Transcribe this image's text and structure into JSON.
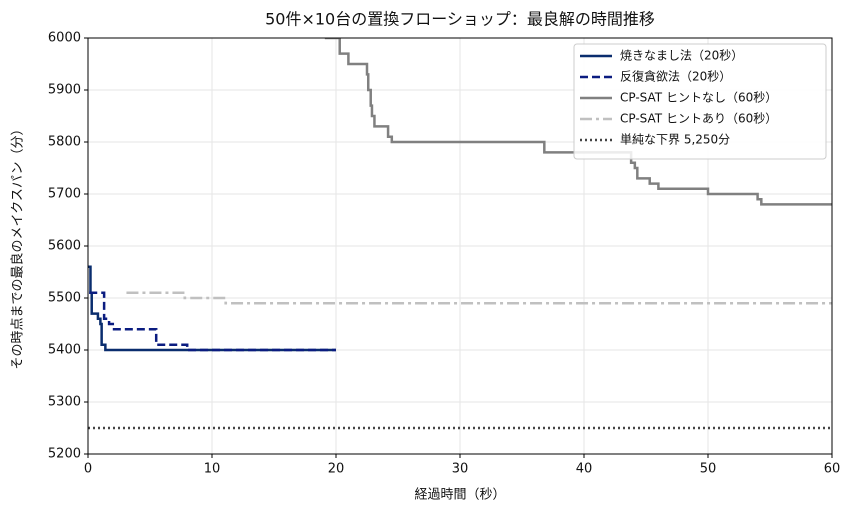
{
  "chart_data": {
    "type": "line",
    "drawstyle": "steps-post",
    "title": "50件×10台の置換フローショップ：最良解の時間推移",
    "xlabel": "経過時間（秒）",
    "ylabel": "その時点までの最良のメイクスパン（分）",
    "xlim": [
      0,
      60
    ],
    "ylim": [
      5200,
      6000
    ],
    "xticks": [
      0,
      10,
      20,
      30,
      40,
      50,
      60
    ],
    "yticks": [
      5200,
      5300,
      5400,
      5500,
      5600,
      5700,
      5800,
      5900,
      6000
    ],
    "grid": true,
    "legend": "upper right",
    "series": [
      {
        "name": "焼きなまし法（20秒）",
        "color": "#0a2d6e",
        "linestyle": "solid",
        "x": [
          0,
          0.2,
          0.3,
          0.8,
          1.0,
          1.1,
          1.4,
          20
        ],
        "values": [
          5560,
          5510,
          5470,
          5460,
          5450,
          5410,
          5400,
          5400
        ]
      },
      {
        "name": "反復貪欲法（20秒）",
        "color": "#0b1c80",
        "linestyle": "dashed",
        "x": [
          0.1,
          1.3,
          1.7,
          2.1,
          5.5,
          8.0,
          20
        ],
        "values": [
          5510,
          5460,
          5450,
          5440,
          5410,
          5400,
          5400
        ]
      },
      {
        "name": "CP-SAT ヒントなし（60秒）",
        "color": "#808080",
        "linestyle": "solid",
        "x": [
          19.1,
          20.3,
          21.0,
          22.5,
          22.6,
          22.8,
          22.9,
          23.1,
          24.2,
          24.5,
          36.8,
          43.8,
          44.1,
          44.3,
          45.3,
          46.0,
          50.0,
          54.0,
          54.3,
          60
        ],
        "values": [
          6000,
          5970,
          5950,
          5930,
          5900,
          5870,
          5850,
          5830,
          5810,
          5800,
          5780,
          5760,
          5750,
          5730,
          5720,
          5710,
          5700,
          5690,
          5680,
          5680
        ]
      },
      {
        "name": "CP-SAT ヒントあり（60秒）",
        "color": "#c0c0c0",
        "linestyle": "dashdot",
        "x": [
          3.1,
          7.8,
          11.1,
          60
        ],
        "values": [
          5510,
          5500,
          5490,
          5490
        ]
      },
      {
        "name": "単純な下界 5,250分",
        "color": "#444444",
        "linestyle": "dotted",
        "x": [
          0,
          60
        ],
        "values": [
          5250,
          5250
        ]
      }
    ]
  }
}
